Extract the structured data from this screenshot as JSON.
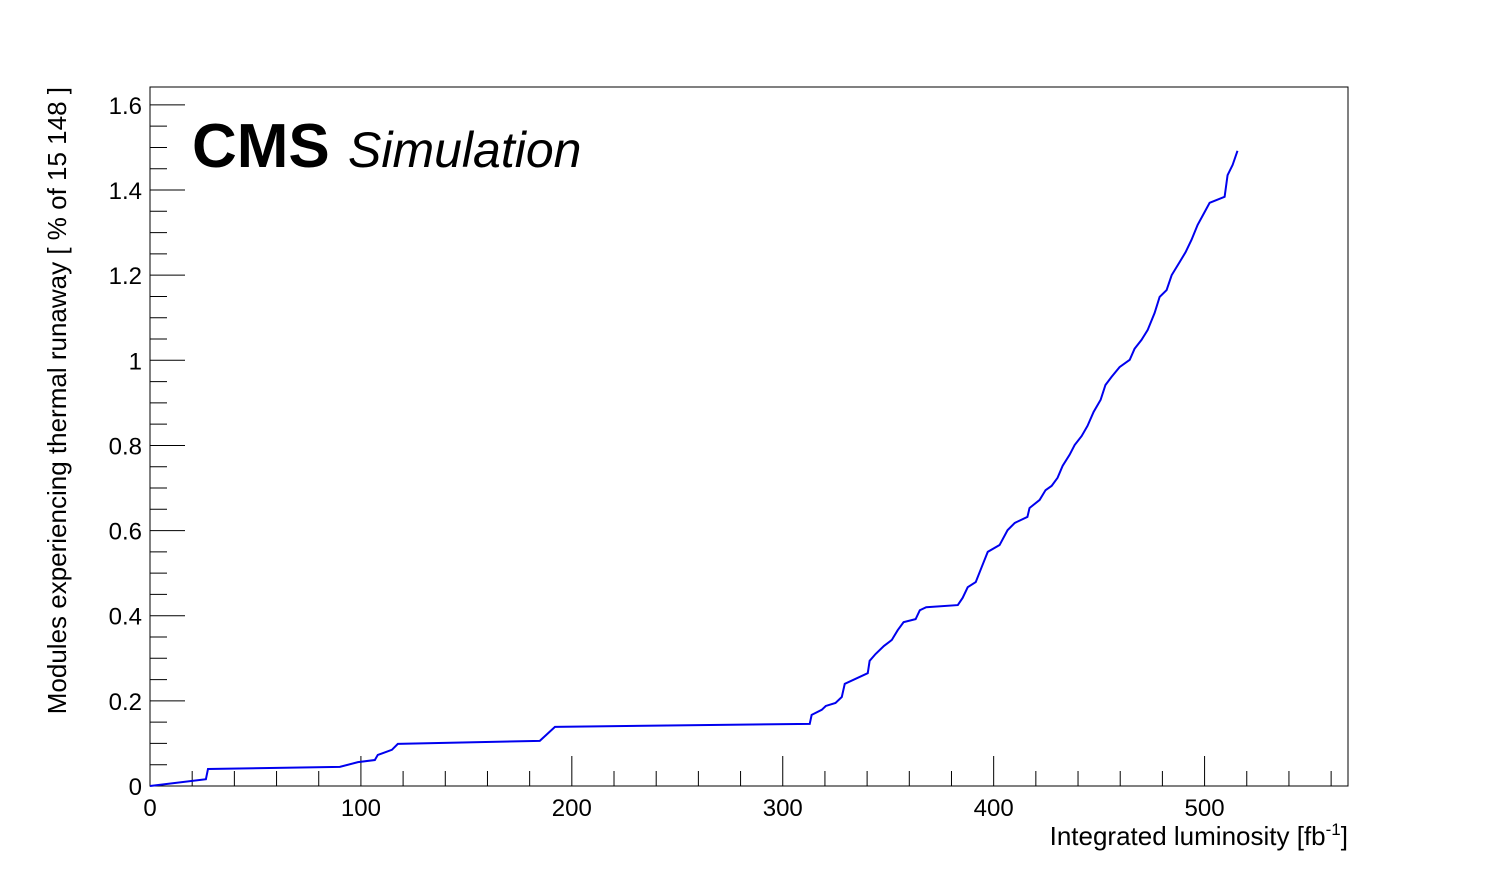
{
  "chart_data": {
    "type": "line",
    "cms_label": "CMS",
    "extra_label": "Simulation",
    "xlabel": {
      "text": "Integrated luminosity [fb",
      "sup": "-1",
      "end": "]"
    },
    "ylabel": "Modules experiencing thermal runaway [ % of 15 148 ]",
    "xlim": [
      0,
      568
    ],
    "ylim": [
      0,
      1.642
    ],
    "xticks": [
      0,
      100,
      200,
      300,
      400,
      500
    ],
    "yticks": [
      0,
      0.2,
      0.4,
      0.6,
      0.8,
      1,
      1.2,
      1.4,
      1.6
    ],
    "series": [
      {
        "color": "#0000ee",
        "x": [
          0,
          26.5,
          27.5,
          90,
          98.6,
          106.6,
          108,
          114.7,
          117.5,
          184.8,
          192,
          312.8,
          313.7,
          318.5,
          320.4,
          325,
          328,
          329.4,
          340.3,
          341.2,
          344,
          348,
          351.7,
          354.5,
          357.3,
          363,
          365,
          368,
          383,
          385.3,
          387.7,
          391.5,
          394.3,
          397.2,
          402.8,
          406.6,
          410,
          416,
          417,
          421.8,
          424.6,
          427.5,
          430.3,
          432.7,
          436,
          438.4,
          441.7,
          444.5,
          447.4,
          450.7,
          453,
          455.9,
          459.7,
          464.5,
          466.8,
          470.1,
          473,
          476.3,
          478.7,
          482,
          484.4,
          488.2,
          491,
          493.8,
          496.7,
          500,
          502.4,
          509.5,
          510.9,
          513.3,
          515.6
        ],
        "values": [
          0,
          0.016,
          0.04,
          0.045,
          0.056,
          0.061,
          0.073,
          0.085,
          0.099,
          0.106,
          0.139,
          0.146,
          0.167,
          0.179,
          0.188,
          0.195,
          0.209,
          0.24,
          0.265,
          0.294,
          0.31,
          0.329,
          0.343,
          0.366,
          0.385,
          0.392,
          0.413,
          0.42,
          0.425,
          0.442,
          0.467,
          0.479,
          0.514,
          0.55,
          0.566,
          0.601,
          0.618,
          0.632,
          0.653,
          0.672,
          0.695,
          0.705,
          0.724,
          0.752,
          0.778,
          0.801,
          0.822,
          0.846,
          0.879,
          0.907,
          0.942,
          0.961,
          0.984,
          1.001,
          1.027,
          1.048,
          1.071,
          1.111,
          1.149,
          1.165,
          1.2,
          1.231,
          1.254,
          1.283,
          1.318,
          1.348,
          1.37,
          1.384,
          1.435,
          1.459,
          1.492
        ]
      }
    ]
  }
}
